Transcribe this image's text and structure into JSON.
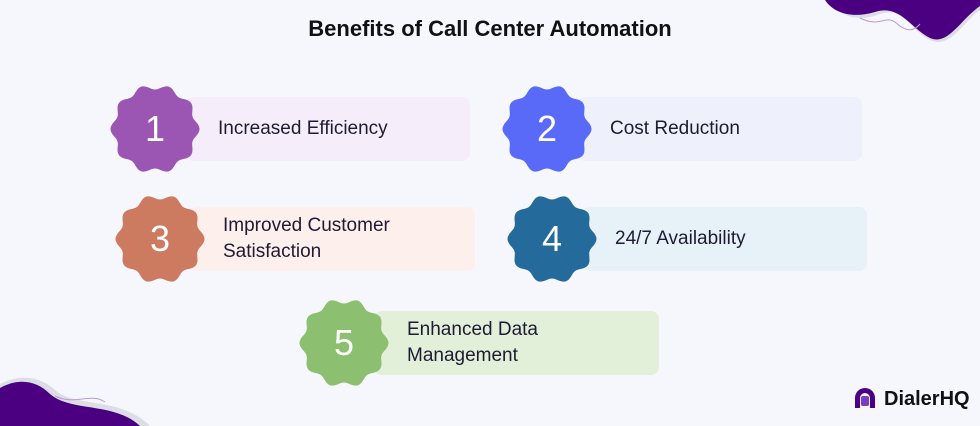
{
  "title": "Benefits of Call Center Automation",
  "items": [
    {
      "number": "1",
      "label": "Increased Efficiency",
      "badge_color": "#9b56b3",
      "card_color": "#f6edfb"
    },
    {
      "number": "2",
      "label": "Cost Reduction",
      "badge_color": "#5a6af8",
      "card_color": "#eef0fc"
    },
    {
      "number": "3",
      "label": "Improved Customer Satisfaction",
      "badge_color": "#cc7a60",
      "card_color": "#fdefeb"
    },
    {
      "number": "4",
      "label": "24/7 Availability",
      "badge_color": "#246b9b",
      "card_color": "#e7f1f8"
    },
    {
      "number": "5",
      "label": "Enhanced Data Management",
      "badge_color": "#8dbf70",
      "card_color": "#e2f0d9"
    }
  ],
  "logo": {
    "text": "DialerHQ",
    "color": "#4a0080"
  }
}
